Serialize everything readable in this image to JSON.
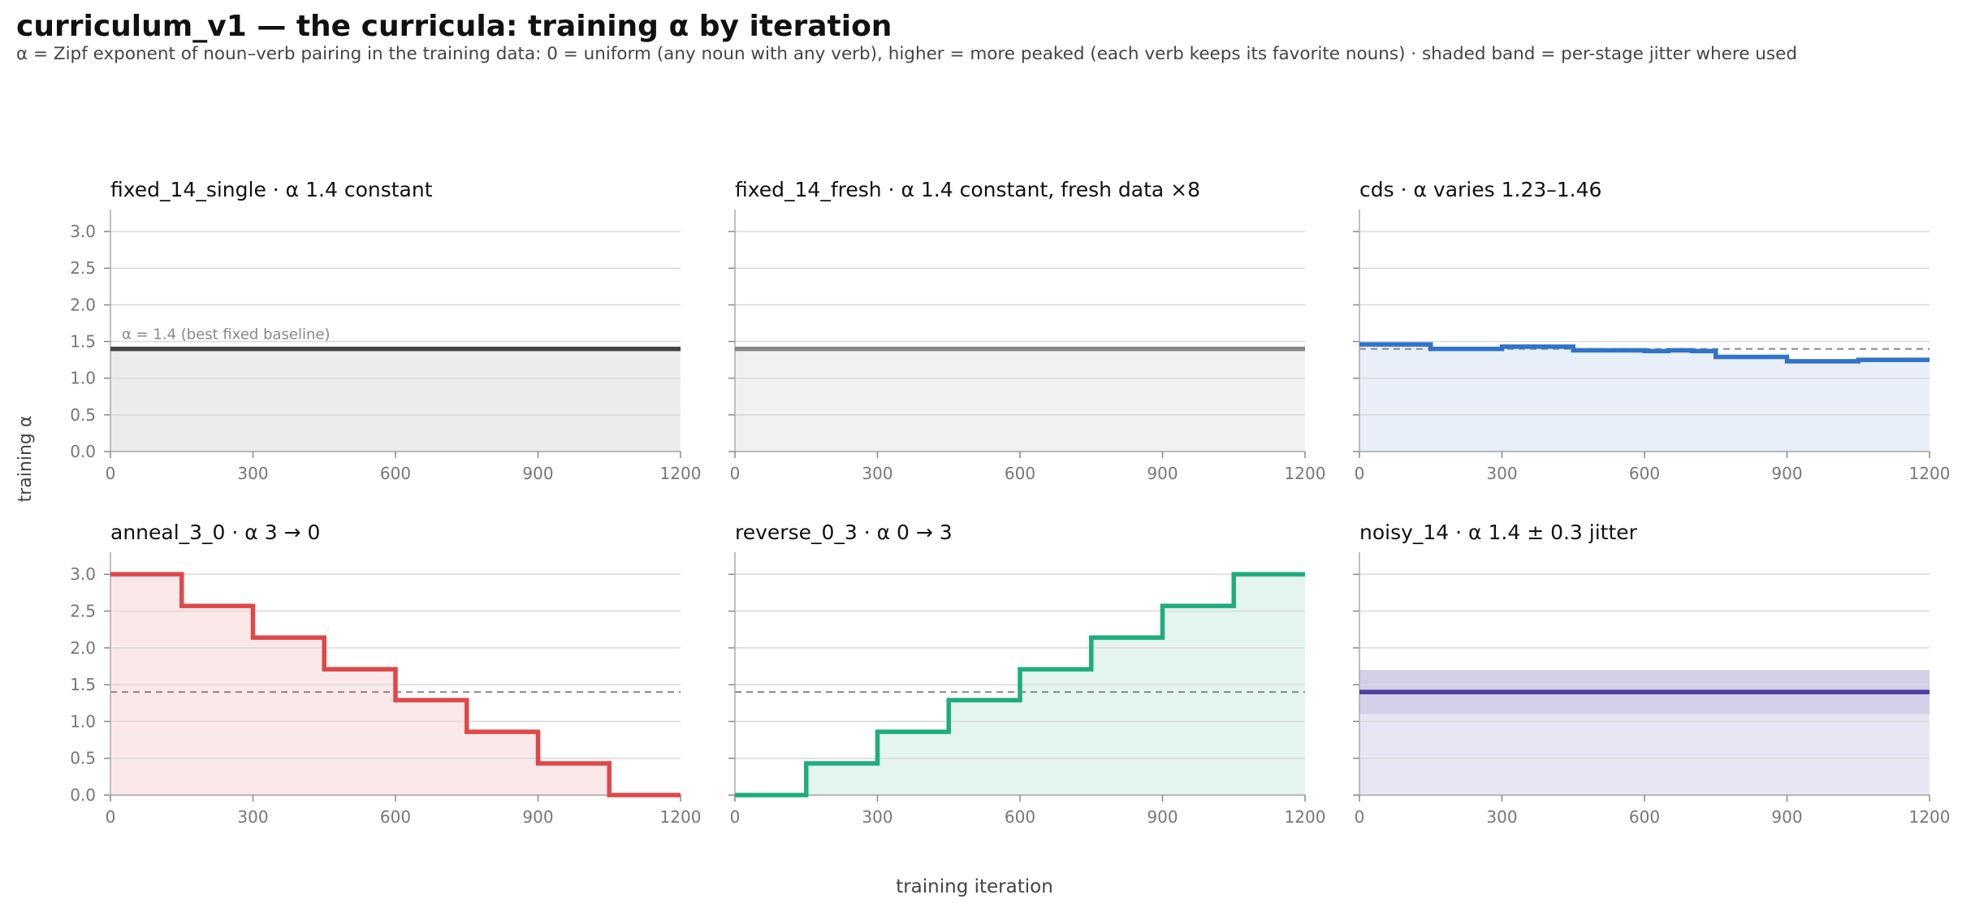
{
  "figure": {
    "title": "curriculum_v1 — the curricula: training α by iteration",
    "subtitle": "α = Zipf exponent of noun–verb pairing in the training data: 0 = uniform (any noun with any verb), higher = more peaked (each verb keeps its favorite nouns) · shaded band = per-stage jitter where used",
    "ylabel": "training α",
    "xlabel": "training iteration"
  },
  "chart_data": [
    {
      "type": "line",
      "step": true,
      "name": "fixed_14_single",
      "subtitle": "α 1.4 constant",
      "color": "#444444",
      "fill": "#ececea",
      "x": [
        0,
        1200
      ],
      "y": [
        1.4,
        1.4
      ],
      "reference": {
        "y": 1.4,
        "label": "α = 1.4 (best fixed baseline)",
        "style": "solid"
      },
      "xlim": [
        0,
        1200
      ],
      "ylim": [
        0,
        3.3
      ],
      "xticks": [
        "0",
        "300",
        "600",
        "900",
        "1200"
      ],
      "yticks": [
        "0.0",
        "0.5",
        "1.0",
        "1.5",
        "2.0",
        "2.5",
        "3.0"
      ],
      "grid": "horizontal"
    },
    {
      "type": "line",
      "step": true,
      "name": "fixed_14_fresh",
      "subtitle": "α 1.4 constant, fresh data ×8",
      "color": "#888888",
      "fill": "#f1f1f1",
      "x": [
        0,
        1200
      ],
      "y": [
        1.4,
        1.4
      ],
      "xlim": [
        0,
        1200
      ],
      "ylim": [
        0,
        3.3
      ],
      "xticks": [
        "0",
        "300",
        "600",
        "900",
        "1200"
      ],
      "grid": "horizontal"
    },
    {
      "type": "line",
      "step": true,
      "name": "cds",
      "subtitle": "α varies 1.23–1.46",
      "color": "#2f74c9",
      "fill": "#e8eff9",
      "x": [
        0,
        150,
        300,
        450,
        600,
        650,
        700,
        750,
        900,
        1050,
        1200
      ],
      "y": [
        1.46,
        1.4,
        1.43,
        1.38,
        1.37,
        1.38,
        1.37,
        1.29,
        1.23,
        1.25,
        1.25
      ],
      "reference": {
        "y": 1.4,
        "style": "dashed"
      },
      "xlim": [
        0,
        1200
      ],
      "ylim": [
        0,
        3.3
      ],
      "xticks": [
        "0",
        "300",
        "600",
        "900",
        "1200"
      ],
      "grid": "horizontal"
    },
    {
      "type": "line",
      "step": true,
      "name": "anneal_3_0",
      "subtitle": "α 3 → 0",
      "color": "#e04848",
      "fill": "#fbe9e9",
      "x": [
        0,
        150,
        300,
        450,
        600,
        750,
        900,
        1050,
        1200
      ],
      "y": [
        3.0,
        2.57,
        2.14,
        1.71,
        1.29,
        0.86,
        0.43,
        0.0,
        0.0
      ],
      "reference": {
        "y": 1.4,
        "style": "dashed"
      },
      "xlim": [
        0,
        1200
      ],
      "ylim": [
        0,
        3.3
      ],
      "xticks": [
        "0",
        "300",
        "600",
        "900",
        "1200"
      ],
      "yticks": [
        "0.0",
        "0.5",
        "1.0",
        "1.5",
        "2.0",
        "2.5",
        "3.0"
      ],
      "grid": "horizontal"
    },
    {
      "type": "line",
      "step": true,
      "name": "reverse_0_3",
      "subtitle": "α 0 → 3",
      "color": "#1fac7e",
      "fill": "#e4f4ee",
      "x": [
        0,
        150,
        300,
        450,
        600,
        750,
        900,
        1050,
        1200
      ],
      "y": [
        0.0,
        0.43,
        0.86,
        1.29,
        1.71,
        2.14,
        2.57,
        3.0,
        3.0
      ],
      "reference": {
        "y": 1.4,
        "style": "dashed"
      },
      "xlim": [
        0,
        1200
      ],
      "ylim": [
        0,
        3.3
      ],
      "xticks": [
        "0",
        "300",
        "600",
        "900",
        "1200"
      ],
      "grid": "horizontal"
    },
    {
      "type": "line",
      "step": true,
      "name": "noisy_14",
      "subtitle": "α 1.4 ± 0.3 jitter",
      "color": "#4a3fa0",
      "fill": "#e8e6f4",
      "x": [
        0,
        1200
      ],
      "y": [
        1.4,
        1.4
      ],
      "band": {
        "lower": 1.1,
        "upper": 1.7,
        "color": "#d2cfe9"
      },
      "xlim": [
        0,
        1200
      ],
      "ylim": [
        0,
        3.3
      ],
      "xticks": [
        "0",
        "300",
        "600",
        "900",
        "1200"
      ],
      "grid": "horizontal"
    }
  ]
}
